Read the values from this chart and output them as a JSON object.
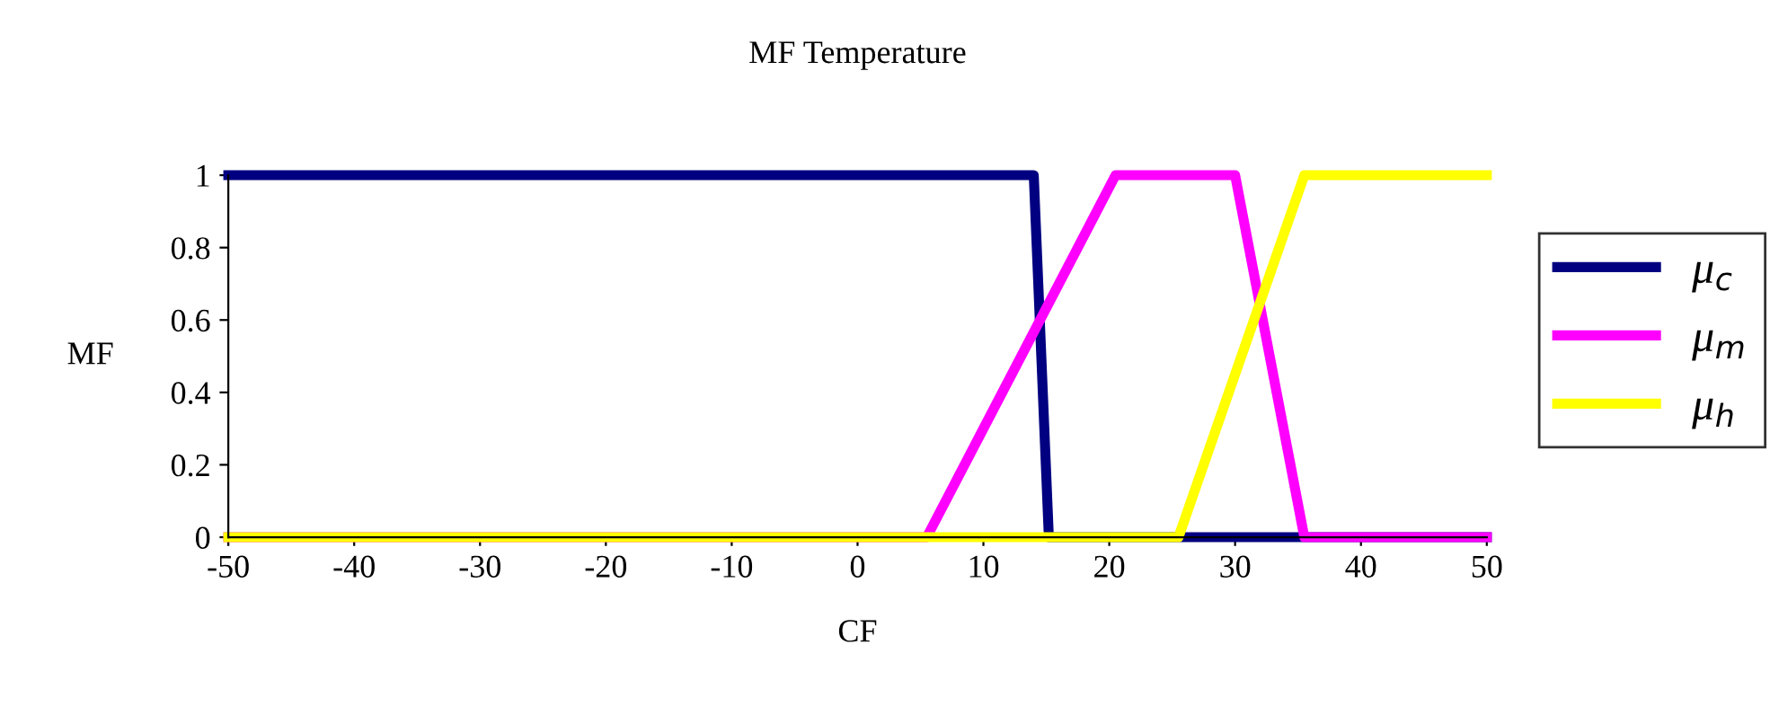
{
  "chart_data": {
    "type": "line",
    "title": "MF Temperature",
    "xlabel": "CF",
    "ylabel": "MF",
    "xlim": [
      -50,
      50
    ],
    "xticks": [
      -50,
      -40,
      -30,
      -20,
      -10,
      0,
      10,
      20,
      30,
      40,
      50
    ],
    "ylim": [
      0,
      1
    ],
    "yticks": [
      0,
      0.2,
      0.4,
      0.6,
      0.8,
      1
    ],
    "grid": false,
    "legend": "right",
    "marker": "none",
    "line_style": "solid",
    "series": [
      {
        "name": "μ$_{c}$",
        "color": "#000080",
        "x": [
          -50,
          14,
          15.2,
          50
        ],
        "values": [
          1,
          1,
          0,
          0
        ]
      },
      {
        "name": "μ$_{m}$",
        "color": "#ff00ff",
        "x": [
          -50,
          5.5,
          20.5,
          30,
          35.5,
          50
        ],
        "values": [
          0,
          0,
          1,
          1,
          0,
          0
        ]
      },
      {
        "name": "μ$_{h}$",
        "color": "#ffff00",
        "x": [
          -50,
          25.5,
          35.5,
          50
        ],
        "values": [
          0,
          0,
          1,
          1
        ]
      }
    ]
  }
}
